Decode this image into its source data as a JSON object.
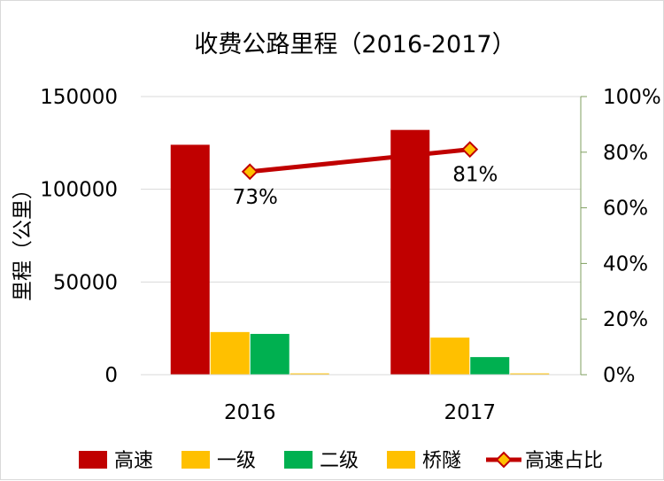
{
  "chart_data": {
    "type": "bar",
    "title": "收费公路里程（2016-2017）",
    "xlabel": "",
    "ylabel": "里程（公里）",
    "categories": [
      "2016",
      "2017"
    ],
    "ylim": [
      0,
      150000
    ],
    "yticks": [
      "0",
      "50000",
      "100000",
      "150000"
    ],
    "y2lim": [
      0,
      1
    ],
    "y2ticks": [
      "0%",
      "20%",
      "40%",
      "60%",
      "80%",
      "100%"
    ],
    "grid": true,
    "legend_position": "bottom",
    "series": [
      {
        "name": "高速",
        "type": "bar",
        "axis": "left",
        "color": "#c00000",
        "values": [
          124000,
          132000
        ]
      },
      {
        "name": "一级",
        "type": "bar",
        "axis": "left",
        "color": "#ffc000",
        "values": [
          23000,
          20000
        ]
      },
      {
        "name": "二级",
        "type": "bar",
        "axis": "left",
        "color": "#00b050",
        "values": [
          22000,
          9500
        ]
      },
      {
        "name": "桥隧",
        "type": "bar",
        "axis": "left",
        "color": "#ffc000",
        "values": [
          700,
          700
        ]
      },
      {
        "name": "高速占比",
        "type": "line",
        "axis": "right",
        "color": "#c00000",
        "marker_color": "#ffc000",
        "values": [
          0.73,
          0.81
        ],
        "labels": [
          "73%",
          "81%"
        ]
      }
    ]
  }
}
